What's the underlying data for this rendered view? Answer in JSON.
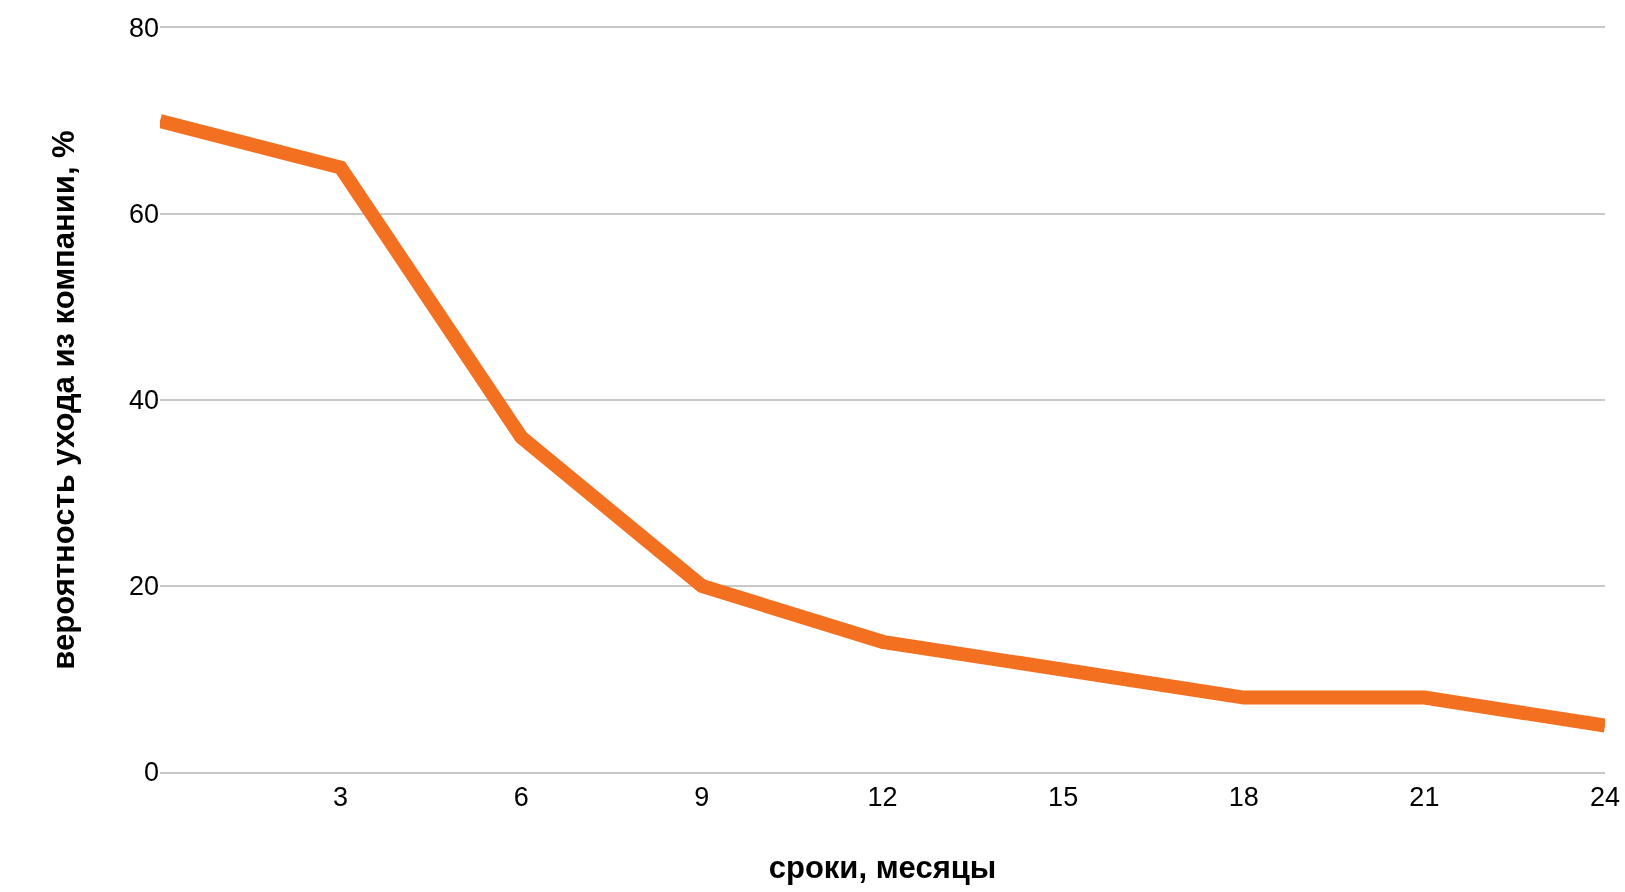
{
  "chart_data": {
    "type": "line",
    "xlabel": "сроки, месяцы",
    "ylabel": "вероятность ухода из компании, %",
    "x": [
      0,
      3,
      6,
      9,
      12,
      18,
      21,
      24
    ],
    "series": [
      {
        "color": "#f37021",
        "values": [
          70,
          65,
          36,
          20,
          14,
          8,
          8,
          5
        ]
      }
    ],
    "xlim": [
      0,
      24
    ],
    "xticks": [
      3,
      6,
      9,
      12,
      15,
      18,
      21,
      24
    ],
    "ylim": [
      0,
      80
    ],
    "yticks": [
      0,
      20,
      40,
      60,
      80
    ],
    "grid": "y",
    "marker": "none",
    "line_style": "solid"
  }
}
